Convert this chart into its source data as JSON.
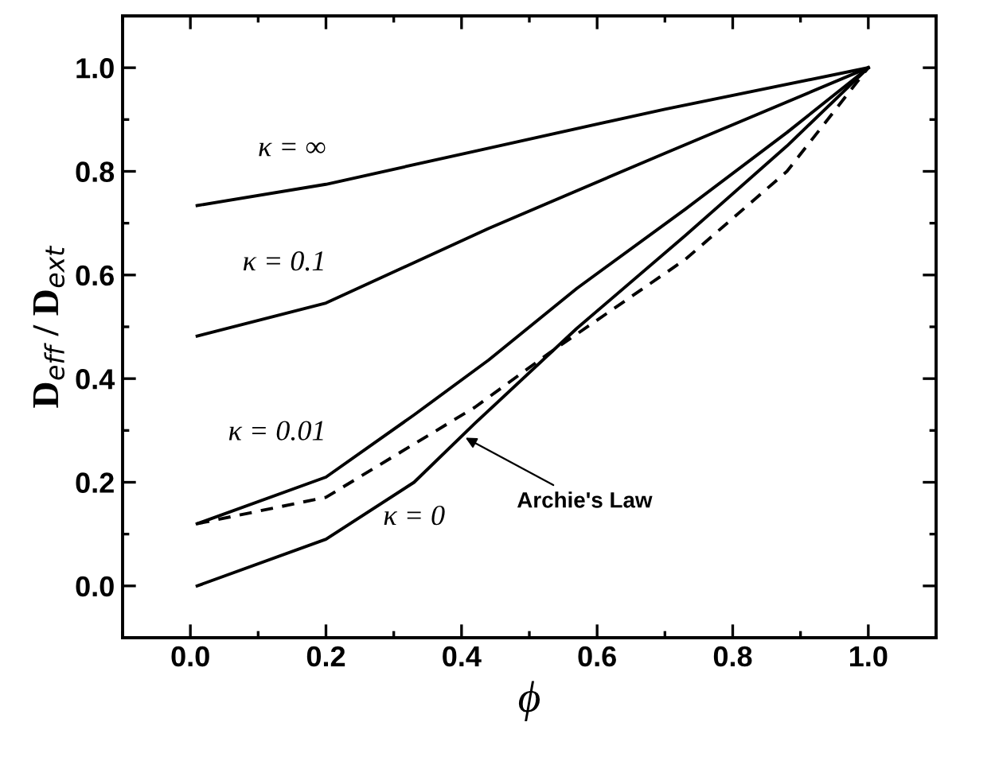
{
  "chart_data": {
    "type": "line",
    "xlabel": "ϕ",
    "ylabel": "D$_{eff}$ / D$_{ext}$",
    "series": [
      {
        "name": "κ = ∞",
        "color": "#000000",
        "line_style": "solid",
        "x": [
          0.01,
          0.2,
          0.42,
          0.7,
          1.0
        ],
        "values": [
          0.734,
          0.775,
          0.839,
          0.92,
          1.0
        ]
      },
      {
        "name": "κ = 0.1",
        "color": "#000000",
        "line_style": "solid",
        "x": [
          0.01,
          0.2,
          0.44,
          0.7,
          1.0
        ],
        "values": [
          0.482,
          0.546,
          0.69,
          0.835,
          1.0
        ]
      },
      {
        "name": "κ = 0.01",
        "color": "#000000",
        "line_style": "solid",
        "x": [
          0.01,
          0.2,
          0.33,
          0.44,
          0.57,
          0.73,
          0.88,
          1.0
        ],
        "values": [
          0.12,
          0.21,
          0.33,
          0.436,
          0.574,
          0.727,
          0.875,
          1.0
        ]
      },
      {
        "name": "κ = 0",
        "color": "#000000",
        "line_style": "solid",
        "x": [
          0.01,
          0.2,
          0.33,
          0.42,
          0.57,
          0.73,
          0.88,
          1.0
        ],
        "values": [
          0.0,
          0.09,
          0.2,
          0.314,
          0.497,
          0.676,
          0.849,
          1.0
        ]
      },
      {
        "color": "#000000",
        "line_style": "dashed",
        "x": [
          0.01,
          0.2,
          0.42,
          0.53,
          0.73,
          0.88,
          1.0
        ],
        "values": [
          0.12,
          0.171,
          0.345,
          0.45,
          0.63,
          0.8,
          1.0
        ]
      }
    ],
    "annotations": [
      {
        "text": "Archie's Law",
        "x": 0.4,
        "y": 0.29
      }
    ],
    "xlim": [
      -0.1,
      1.1
    ],
    "ylim": [
      -0.1,
      1.1
    ],
    "xticks": [
      {
        "value": -0.1,
        "label": null
      },
      {
        "value": 0.0,
        "label": "0.0"
      },
      {
        "value": 0.1,
        "label": null
      },
      {
        "value": 0.2,
        "label": "0.2"
      },
      {
        "value": 0.3,
        "label": null
      },
      {
        "value": 0.4,
        "label": "0.4"
      },
      {
        "value": 0.5,
        "label": null
      },
      {
        "value": 0.6,
        "label": "0.6"
      },
      {
        "value": 0.7,
        "label": null
      },
      {
        "value": 0.8,
        "label": "0.8"
      },
      {
        "value": 0.9,
        "label": null
      },
      {
        "value": 1.0,
        "label": "1.0"
      }
    ],
    "yticks": [
      {
        "value": 0.0,
        "label": "0.0"
      },
      {
        "value": 0.1,
        "label": null
      },
      {
        "value": 0.2,
        "label": "0.2"
      },
      {
        "value": 0.3,
        "label": null
      },
      {
        "value": 0.4,
        "label": "0.4"
      },
      {
        "value": 0.5,
        "label": null
      },
      {
        "value": 0.6,
        "label": "0.6"
      },
      {
        "value": 0.7,
        "label": null
      },
      {
        "value": 0.8,
        "label": "0.8"
      },
      {
        "value": 0.9,
        "label": null
      },
      {
        "value": 1.0,
        "label": "1.0"
      }
    ],
    "grid": false,
    "legend": false,
    "marker": "none"
  }
}
